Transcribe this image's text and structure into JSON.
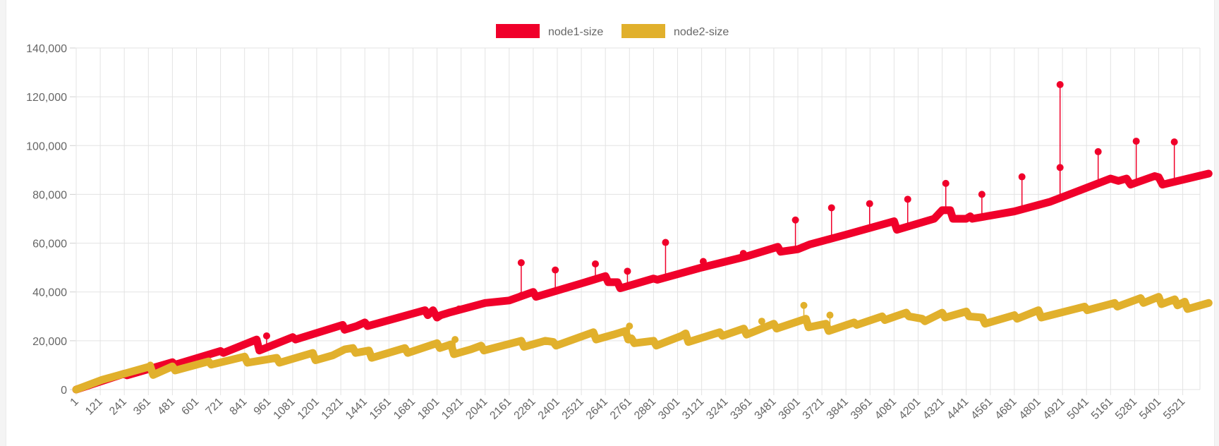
{
  "chart_data": {
    "type": "line",
    "title": "",
    "xlabel": "",
    "ylabel": "",
    "ylim": [
      0,
      140000
    ],
    "yticks": [
      0,
      20000,
      40000,
      60000,
      80000,
      100000,
      120000,
      140000
    ],
    "ytick_labels": [
      "0",
      "20,000",
      "40,000",
      "60,000",
      "80,000",
      "100,000",
      "120,000",
      "140,000"
    ],
    "xlim": [
      1,
      5650
    ],
    "xtick_step": 40,
    "xtick_labels": [
      "1",
      "121",
      "241",
      "361",
      "481",
      "601",
      "721",
      "841",
      "961",
      "1081",
      "1201",
      "1321",
      "1441",
      "1561",
      "1681",
      "1801",
      "1921",
      "2041",
      "2161",
      "2281",
      "2401",
      "2521",
      "2641",
      "2761",
      "2881",
      "3001",
      "3121",
      "3241",
      "3361",
      "3481",
      "3601",
      "3721",
      "3841",
      "3961",
      "4081",
      "4201",
      "4321",
      "4441",
      "4561",
      "4681",
      "4801",
      "4921",
      "5041",
      "5161",
      "5281",
      "5401",
      "5521"
    ],
    "grid": true,
    "legend": "top-center",
    "series": [
      {
        "name": "node1-size",
        "color": "#f0002a",
        "points": [
          [
            1,
            0
          ],
          [
            241,
            6500
          ],
          [
            255,
            5800
          ],
          [
            481,
            11200
          ],
          [
            495,
            10200
          ],
          [
            721,
            15800
          ],
          [
            735,
            15000
          ],
          [
            901,
            20500
          ],
          [
            915,
            16000
          ],
          [
            1081,
            21500
          ],
          [
            1095,
            20500
          ],
          [
            1331,
            26500
          ],
          [
            1340,
            24500
          ],
          [
            1400,
            26000
          ],
          [
            1441,
            27500
          ],
          [
            1455,
            26000
          ],
          [
            1741,
            32500
          ],
          [
            1755,
            30500
          ],
          [
            1781,
            32500
          ],
          [
            1801,
            29500
          ],
          [
            1820,
            30500
          ],
          [
            1860,
            31500
          ],
          [
            2041,
            35500
          ],
          [
            2161,
            36500
          ],
          [
            2281,
            40000
          ],
          [
            2295,
            38000
          ],
          [
            2521,
            43500
          ],
          [
            2561,
            44500
          ],
          [
            2641,
            46500
          ],
          [
            2655,
            44000
          ],
          [
            2701,
            44000
          ],
          [
            2715,
            41500
          ],
          [
            2881,
            45500
          ],
          [
            2900,
            45000
          ],
          [
            3121,
            50000
          ],
          [
            3341,
            54500
          ],
          [
            3501,
            58500
          ],
          [
            3515,
            56500
          ],
          [
            3601,
            57500
          ],
          [
            3661,
            59500
          ],
          [
            3841,
            63500
          ],
          [
            4081,
            69000
          ],
          [
            4095,
            65500
          ],
          [
            4281,
            70000
          ],
          [
            4321,
            73500
          ],
          [
            4361,
            73500
          ],
          [
            4375,
            70000
          ],
          [
            4441,
            70000
          ],
          [
            4461,
            71000
          ],
          [
            4471,
            70000
          ],
          [
            4681,
            73000
          ],
          [
            4861,
            77000
          ],
          [
            5161,
            86500
          ],
          [
            5200,
            85500
          ],
          [
            5241,
            86500
          ],
          [
            5261,
            84000
          ],
          [
            5381,
            87500
          ],
          [
            5401,
            87000
          ],
          [
            5420,
            84000
          ],
          [
            5650,
            88500
          ]
        ],
        "spikes": [
          [
            2221,
            52000
          ],
          [
            2221,
            38500
          ],
          [
            2391,
            49000
          ],
          [
            2591,
            51500
          ],
          [
            2751,
            48500
          ],
          [
            2941,
            60300
          ],
          [
            3129,
            52500
          ],
          [
            3329,
            55800
          ],
          [
            3589,
            69500
          ],
          [
            3769,
            74500
          ],
          [
            3959,
            76200
          ],
          [
            4149,
            78000
          ],
          [
            4339,
            84500
          ],
          [
            4519,
            80000
          ],
          [
            4719,
            87200
          ],
          [
            4909,
            125000
          ],
          [
            4909,
            91000
          ],
          [
            5099,
            97500
          ],
          [
            5289,
            101800
          ],
          [
            5479,
            101500
          ],
          [
            951,
            22000
          ],
          [
            1911,
            33000
          ]
        ]
      },
      {
        "name": "node2-size",
        "color": "#e1b02c",
        "points": [
          [
            1,
            0
          ],
          [
            131,
            4000
          ],
          [
            241,
            6500
          ],
          [
            371,
            9500
          ],
          [
            385,
            6000
          ],
          [
            481,
            9500
          ],
          [
            495,
            7800
          ],
          [
            661,
            11500
          ],
          [
            675,
            10200
          ],
          [
            841,
            13500
          ],
          [
            855,
            11000
          ],
          [
            1001,
            13000
          ],
          [
            1015,
            11000
          ],
          [
            1181,
            15000
          ],
          [
            1195,
            12000
          ],
          [
            1281,
            14000
          ],
          [
            1341,
            16500
          ],
          [
            1381,
            17000
          ],
          [
            1395,
            15000
          ],
          [
            1461,
            16000
          ],
          [
            1475,
            13000
          ],
          [
            1641,
            17000
          ],
          [
            1655,
            15000
          ],
          [
            1801,
            19000
          ],
          [
            1815,
            17000
          ],
          [
            1871,
            18500
          ],
          [
            1885,
            14500
          ],
          [
            1971,
            16500
          ],
          [
            2021,
            18000
          ],
          [
            2035,
            16000
          ],
          [
            2221,
            20000
          ],
          [
            2235,
            17500
          ],
          [
            2341,
            20000
          ],
          [
            2381,
            19500
          ],
          [
            2395,
            18000
          ],
          [
            2581,
            23500
          ],
          [
            2595,
            20500
          ],
          [
            2681,
            22500
          ],
          [
            2741,
            24000
          ],
          [
            2755,
            20500
          ],
          [
            2771,
            21000
          ],
          [
            2785,
            19000
          ],
          [
            2881,
            20000
          ],
          [
            2895,
            18000
          ],
          [
            3021,
            22000
          ],
          [
            3041,
            23000
          ],
          [
            3055,
            19500
          ],
          [
            3211,
            23500
          ],
          [
            3225,
            22000
          ],
          [
            3331,
            25000
          ],
          [
            3345,
            22500
          ],
          [
            3481,
            27000
          ],
          [
            3495,
            25000
          ],
          [
            3641,
            29000
          ],
          [
            3655,
            25500
          ],
          [
            3741,
            27000
          ],
          [
            3755,
            24000
          ],
          [
            3881,
            27500
          ],
          [
            3895,
            26500
          ],
          [
            4021,
            30000
          ],
          [
            4035,
            28500
          ],
          [
            4141,
            31500
          ],
          [
            4155,
            30000
          ],
          [
            4221,
            29000
          ],
          [
            4235,
            28000
          ],
          [
            4321,
            31500
          ],
          [
            4335,
            29500
          ],
          [
            4441,
            32000
          ],
          [
            4455,
            30000
          ],
          [
            4521,
            29500
          ],
          [
            4535,
            27000
          ],
          [
            4681,
            30500
          ],
          [
            4695,
            29000
          ],
          [
            4801,
            32500
          ],
          [
            4815,
            29500
          ],
          [
            5031,
            34000
          ],
          [
            5045,
            32500
          ],
          [
            5181,
            35500
          ],
          [
            5195,
            34000
          ],
          [
            5311,
            37500
          ],
          [
            5325,
            35500
          ],
          [
            5401,
            38000
          ],
          [
            5415,
            35000
          ],
          [
            5481,
            37000
          ],
          [
            5495,
            34500
          ],
          [
            5531,
            36000
          ],
          [
            5545,
            33000
          ],
          [
            5650,
            35500
          ]
        ],
        "spikes": [
          [
            3421,
            28000
          ],
          [
            3631,
            34500
          ],
          [
            3761,
            30500
          ],
          [
            2761,
            26000
          ],
          [
            1891,
            20500
          ],
          [
            371,
            10000
          ]
        ]
      }
    ]
  }
}
